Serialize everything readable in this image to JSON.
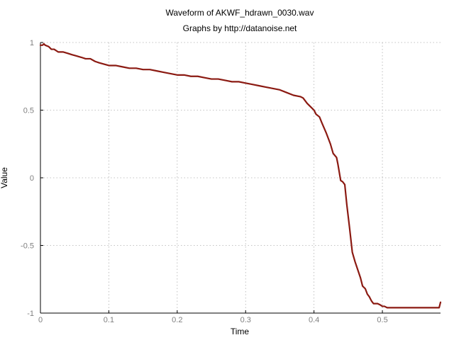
{
  "colors": {
    "series": "#8b1a12",
    "tick_text": "#7f7f7f",
    "grid": "#b0b0b0"
  },
  "chart_data": {
    "type": "line",
    "title": "Waveform of AKWF_hdrawn_0030.wav",
    "subtitle": "Graphs by http://datanoise.net",
    "xlabel": "Time",
    "ylabel": "Value",
    "xlim": [
      0,
      0.585
    ],
    "ylim": [
      -1,
      1
    ],
    "xticks": [
      0,
      0.1,
      0.2,
      0.3,
      0.4,
      0.5
    ],
    "xtick_labels": [
      "0",
      "0.1",
      "0.2",
      "0.3",
      "0.4",
      "0.5"
    ],
    "yticks": [
      1,
      0.5,
      0,
      -0.5,
      -1
    ],
    "ytick_labels": [
      "1",
      "0.5",
      "0",
      "-0.5",
      "-1"
    ],
    "grid": true,
    "legend": "none",
    "series": [
      {
        "x": [
          0,
          0.003,
          0.005,
          0.007,
          0.012,
          0.016,
          0.02,
          0.026,
          0.033,
          0.04,
          0.046,
          0.053,
          0.06,
          0.066,
          0.073,
          0.08,
          0.086,
          0.093,
          0.1,
          0.11,
          0.12,
          0.13,
          0.14,
          0.15,
          0.16,
          0.17,
          0.18,
          0.19,
          0.2,
          0.21,
          0.22,
          0.23,
          0.24,
          0.25,
          0.26,
          0.27,
          0.28,
          0.29,
          0.3,
          0.31,
          0.32,
          0.33,
          0.34,
          0.35,
          0.36,
          0.37,
          0.38,
          0.384,
          0.39,
          0.396,
          0.4,
          0.403,
          0.408,
          0.412,
          0.418,
          0.424,
          0.428,
          0.433,
          0.435,
          0.439,
          0.442,
          0.445,
          0.448,
          0.452,
          0.456,
          0.46,
          0.464,
          0.468,
          0.471,
          0.475,
          0.478,
          0.481,
          0.484,
          0.487,
          0.49,
          0.493,
          0.497,
          0.5,
          0.503,
          0.507,
          0.51,
          0.515,
          0.52,
          0.53,
          0.54,
          0.55,
          0.56,
          0.57,
          0.58,
          0.583,
          0.585
        ],
        "y": [
          0.98,
          0.98,
          0.99,
          0.98,
          0.97,
          0.95,
          0.95,
          0.93,
          0.93,
          0.92,
          0.91,
          0.9,
          0.89,
          0.88,
          0.88,
          0.86,
          0.85,
          0.84,
          0.83,
          0.83,
          0.82,
          0.81,
          0.81,
          0.8,
          0.8,
          0.79,
          0.78,
          0.77,
          0.76,
          0.76,
          0.75,
          0.75,
          0.74,
          0.73,
          0.73,
          0.72,
          0.71,
          0.71,
          0.7,
          0.69,
          0.68,
          0.67,
          0.66,
          0.65,
          0.63,
          0.61,
          0.6,
          0.59,
          0.55,
          0.52,
          0.5,
          0.47,
          0.45,
          0.4,
          0.33,
          0.25,
          0.18,
          0.15,
          0.1,
          -0.02,
          -0.03,
          -0.05,
          -0.2,
          -0.37,
          -0.55,
          -0.62,
          -0.68,
          -0.74,
          -0.8,
          -0.82,
          -0.86,
          -0.88,
          -0.91,
          -0.93,
          -0.93,
          -0.93,
          -0.94,
          -0.95,
          -0.95,
          -0.96,
          -0.96,
          -0.96,
          -0.96,
          -0.96,
          -0.96,
          -0.96,
          -0.96,
          -0.96,
          -0.96,
          -0.96,
          -0.92
        ]
      }
    ]
  }
}
